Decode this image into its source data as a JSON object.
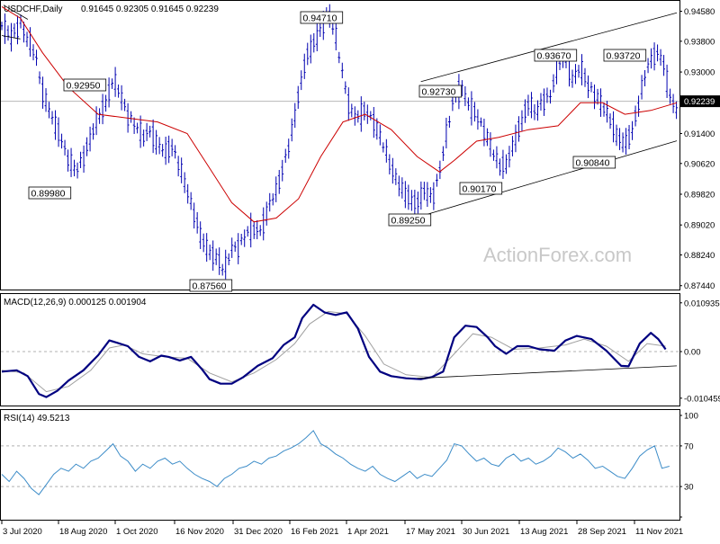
{
  "header": {
    "symbol": "USDCHF,Daily",
    "ohlc": "0.91645 0.92305 0.91645 0.92239"
  },
  "watermark": "ActionForex.com",
  "colors": {
    "price": "#0000b0",
    "ma": "#cc0000",
    "macd": "#000080",
    "signal": "#a0a0a0",
    "rsi": "#3c8cc8",
    "trendline": "#000000",
    "grid_dash": "#b0b0b0"
  },
  "chart_data": [
    {
      "type": "bar",
      "panel": "price",
      "title": "USDCHF,Daily",
      "y_axis_ticks": [
        "0.94580",
        "0.93800",
        "0.93000",
        "0.92239",
        "0.91400",
        "0.90620",
        "0.89820",
        "0.89020",
        "0.88240",
        "0.87440"
      ],
      "y_tick_values": [
        0.9458,
        0.938,
        0.93,
        0.92239,
        0.914,
        0.9062,
        0.8982,
        0.8902,
        0.8824,
        0.8744
      ],
      "ylim": [
        0.8734,
        0.9485
      ],
      "current_price_label": "0.92239",
      "x_tick_labels": [
        "3 Jul 2020",
        "18 Aug 2020",
        "1 Oct 2020",
        "16 Nov 2020",
        "31 Dec 2020",
        "16 Feb 2021",
        "1 Apr 2021",
        "17 May 2021",
        "30 Jun 2021",
        "13 Aug 2021",
        "28 Sep 2021",
        "11 Nov 2021"
      ],
      "price_path": [
        [
          0,
          0.942
        ],
        [
          5,
          0.939
        ],
        [
          10,
          0.943
        ],
        [
          14,
          0.938
        ],
        [
          18,
          0.935
        ],
        [
          22,
          0.925
        ],
        [
          27,
          0.918
        ],
        [
          32,
          0.913
        ],
        [
          36,
          0.907
        ],
        [
          40,
          0.904
        ],
        [
          44,
          0.908
        ],
        [
          48,
          0.913
        ],
        [
          52,
          0.918
        ],
        [
          56,
          0.922
        ],
        [
          60,
          0.928
        ],
        [
          64,
          0.924
        ],
        [
          68,
          0.919
        ],
        [
          72,
          0.916
        ],
        [
          76,
          0.913
        ],
        [
          80,
          0.915
        ],
        [
          84,
          0.911
        ],
        [
          88,
          0.909
        ],
        [
          92,
          0.911
        ],
        [
          96,
          0.905
        ],
        [
          100,
          0.899
        ],
        [
          104,
          0.893
        ],
        [
          108,
          0.886
        ],
        [
          112,
          0.883
        ],
        [
          116,
          0.882
        ],
        [
          120,
          0.878
        ],
        [
          124,
          0.884
        ],
        [
          128,
          0.885
        ],
        [
          132,
          0.888
        ],
        [
          136,
          0.889
        ],
        [
          140,
          0.889
        ],
        [
          144,
          0.895
        ],
        [
          148,
          0.899
        ],
        [
          152,
          0.906
        ],
        [
          156,
          0.913
        ],
        [
          160,
          0.924
        ],
        [
          164,
          0.934
        ],
        [
          168,
          0.937
        ],
        [
          172,
          0.941
        ],
        [
          176,
          0.946
        ],
        [
          180,
          0.939
        ],
        [
          184,
          0.929
        ],
        [
          188,
          0.92
        ],
        [
          192,
          0.918
        ],
        [
          196,
          0.92
        ],
        [
          200,
          0.918
        ],
        [
          204,
          0.913
        ],
        [
          208,
          0.908
        ],
        [
          212,
          0.903
        ],
        [
          216,
          0.899
        ],
        [
          220,
          0.897
        ],
        [
          224,
          0.896
        ],
        [
          228,
          0.899
        ],
        [
          232,
          0.897
        ],
        [
          236,
          0.904
        ],
        [
          240,
          0.914
        ],
        [
          244,
          0.924
        ],
        [
          248,
          0.926
        ],
        [
          252,
          0.921
        ],
        [
          256,
          0.919
        ],
        [
          260,
          0.915
        ],
        [
          264,
          0.91
        ],
        [
          268,
          0.906
        ],
        [
          272,
          0.906
        ],
        [
          276,
          0.911
        ],
        [
          280,
          0.917
        ],
        [
          284,
          0.922
        ],
        [
          288,
          0.919
        ],
        [
          292,
          0.923
        ],
        [
          296,
          0.924
        ],
        [
          300,
          0.932
        ],
        [
          304,
          0.934
        ],
        [
          308,
          0.928
        ],
        [
          312,
          0.931
        ],
        [
          316,
          0.927
        ],
        [
          320,
          0.924
        ],
        [
          324,
          0.921
        ],
        [
          328,
          0.918
        ],
        [
          332,
          0.913
        ],
        [
          336,
          0.911
        ],
        [
          340,
          0.915
        ],
        [
          344,
          0.923
        ],
        [
          348,
          0.931
        ],
        [
          352,
          0.935
        ],
        [
          356,
          0.934
        ],
        [
          360,
          0.924
        ],
        [
          364,
          0.92
        ]
      ],
      "ma_path": [
        [
          0,
          0.947
        ],
        [
          10,
          0.944
        ],
        [
          22,
          0.935
        ],
        [
          36,
          0.926
        ],
        [
          52,
          0.919
        ],
        [
          68,
          0.918
        ],
        [
          84,
          0.917
        ],
        [
          100,
          0.914
        ],
        [
          112,
          0.905
        ],
        [
          124,
          0.896
        ],
        [
          136,
          0.891
        ],
        [
          148,
          0.892
        ],
        [
          160,
          0.897
        ],
        [
          172,
          0.908
        ],
        [
          184,
          0.917
        ],
        [
          196,
          0.919
        ],
        [
          210,
          0.915
        ],
        [
          224,
          0.908
        ],
        [
          236,
          0.904
        ],
        [
          244,
          0.907
        ],
        [
          256,
          0.912
        ],
        [
          268,
          0.913
        ],
        [
          284,
          0.915
        ],
        [
          300,
          0.916
        ],
        [
          312,
          0.922
        ],
        [
          324,
          0.922
        ],
        [
          336,
          0.919
        ],
        [
          350,
          0.92
        ],
        [
          364,
          0.922
        ]
      ],
      "callouts": [
        {
          "label": "0.94710",
          "value": 0.9471
        },
        {
          "label": "0.92950",
          "value": 0.9295
        },
        {
          "label": "0.89980",
          "value": 0.8998
        },
        {
          "label": "0.87560",
          "value": 0.8756
        },
        {
          "label": "0.92730",
          "value": 0.9273
        },
        {
          "label": "0.89250",
          "value": 0.8925
        },
        {
          "label": "0.90170",
          "value": 0.9017
        },
        {
          "label": "0.93670",
          "value": 0.9367
        },
        {
          "label": "0.93720",
          "value": 0.9372
        },
        {
          "label": "0.90840",
          "value": 0.9084
        }
      ],
      "channel_upper": [
        [
          226,
          0.9275
        ],
        [
          364,
          0.9454
        ]
      ],
      "channel_lower": [
        [
          226,
          0.8925
        ],
        [
          364,
          0.9121
        ]
      ]
    },
    {
      "type": "line",
      "panel": "macd",
      "title": "MACD(12,26,9) 0.000125 0.001904",
      "y_axis_ticks": [
        "0.010935",
        "0.00",
        "-0.010459"
      ],
      "y_tick_values": [
        0.010935,
        0.0,
        -0.010459
      ],
      "ylim": [
        -0.0115,
        0.0117
      ],
      "macd_path": [
        [
          0,
          -0.0045
        ],
        [
          8,
          -0.0042
        ],
        [
          14,
          -0.0055
        ],
        [
          20,
          -0.0095
        ],
        [
          24,
          -0.0102
        ],
        [
          30,
          -0.0088
        ],
        [
          36,
          -0.0065
        ],
        [
          44,
          -0.0042
        ],
        [
          52,
          -0.0008
        ],
        [
          58,
          0.0025
        ],
        [
          62,
          0.002
        ],
        [
          68,
          0.0012
        ],
        [
          74,
          -0.0012
        ],
        [
          80,
          -0.0022
        ],
        [
          86,
          -0.0009
        ],
        [
          90,
          -0.0012
        ],
        [
          96,
          -0.002
        ],
        [
          102,
          -0.0012
        ],
        [
          108,
          -0.004
        ],
        [
          112,
          -0.0062
        ],
        [
          118,
          -0.0072
        ],
        [
          124,
          -0.0072
        ],
        [
          130,
          -0.0058
        ],
        [
          138,
          -0.0032
        ],
        [
          146,
          -0.0015
        ],
        [
          152,
          0.0015
        ],
        [
          158,
          0.0032
        ],
        [
          162,
          0.0075
        ],
        [
          168,
          0.0105
        ],
        [
          174,
          0.0088
        ],
        [
          180,
          0.0082
        ],
        [
          186,
          0.0088
        ],
        [
          192,
          0.0052
        ],
        [
          198,
          -0.0012
        ],
        [
          204,
          -0.0045
        ],
        [
          210,
          -0.0055
        ],
        [
          218,
          -0.006
        ],
        [
          226,
          -0.0062
        ],
        [
          232,
          -0.0057
        ],
        [
          238,
          -0.0045
        ],
        [
          244,
          0.0032
        ],
        [
          250,
          0.0058
        ],
        [
          256,
          0.0055
        ],
        [
          262,
          0.0032
        ],
        [
          266,
          0.0012
        ],
        [
          272,
          -0.0005
        ],
        [
          278,
          0.0012
        ],
        [
          284,
          0.0012
        ],
        [
          290,
          0.0005
        ],
        [
          298,
          0.0002
        ],
        [
          304,
          0.0025
        ],
        [
          310,
          0.0035
        ],
        [
          318,
          0.0028
        ],
        [
          326,
          0.0002
        ],
        [
          334,
          -0.0032
        ],
        [
          338,
          -0.0033
        ],
        [
          344,
          0.0018
        ],
        [
          350,
          0.0042
        ],
        [
          354,
          0.0028
        ],
        [
          358,
          0.0005
        ]
      ],
      "signal_path": [
        [
          0,
          -0.0042
        ],
        [
          12,
          -0.0048
        ],
        [
          24,
          -0.009
        ],
        [
          36,
          -0.0078
        ],
        [
          48,
          -0.0042
        ],
        [
          58,
          0.0008
        ],
        [
          66,
          0.0015
        ],
        [
          76,
          -0.0005
        ],
        [
          88,
          -0.0012
        ],
        [
          100,
          -0.0015
        ],
        [
          112,
          -0.0048
        ],
        [
          124,
          -0.0068
        ],
        [
          136,
          -0.0048
        ],
        [
          148,
          -0.0018
        ],
        [
          158,
          0.0018
        ],
        [
          166,
          0.0062
        ],
        [
          176,
          0.009
        ],
        [
          186,
          0.0085
        ],
        [
          196,
          0.0035
        ],
        [
          206,
          -0.0028
        ],
        [
          218,
          -0.0052
        ],
        [
          232,
          -0.0058
        ],
        [
          244,
          -0.0005
        ],
        [
          254,
          0.004
        ],
        [
          264,
          0.0032
        ],
        [
          276,
          0.0005
        ],
        [
          290,
          0.0008
        ],
        [
          304,
          0.0015
        ],
        [
          314,
          0.0028
        ],
        [
          326,
          0.0012
        ],
        [
          338,
          -0.0022
        ],
        [
          348,
          0.0018
        ],
        [
          358,
          0.0012
        ]
      ],
      "trendline": [
        [
          224,
          -0.006
        ],
        [
          364,
          -0.0032
        ]
      ]
    },
    {
      "type": "line",
      "panel": "rsi",
      "title": "RSI(14) 49.5213",
      "y_axis_ticks": [
        "100",
        "70",
        "30",
        "0"
      ],
      "y_tick_values": [
        100,
        70,
        30,
        0
      ],
      "ylim": [
        0,
        100
      ],
      "levels": [
        70,
        30
      ],
      "rsi_path": [
        [
          0,
          42
        ],
        [
          4,
          35
        ],
        [
          8,
          45
        ],
        [
          12,
          38
        ],
        [
          16,
          28
        ],
        [
          20,
          22
        ],
        [
          24,
          32
        ],
        [
          28,
          42
        ],
        [
          32,
          48
        ],
        [
          36,
          45
        ],
        [
          40,
          52
        ],
        [
          44,
          48
        ],
        [
          48,
          55
        ],
        [
          52,
          58
        ],
        [
          56,
          65
        ],
        [
          60,
          72
        ],
        [
          64,
          60
        ],
        [
          68,
          55
        ],
        [
          72,
          45
        ],
        [
          76,
          52
        ],
        [
          80,
          48
        ],
        [
          84,
          55
        ],
        [
          88,
          58
        ],
        [
          92,
          52
        ],
        [
          96,
          55
        ],
        [
          100,
          48
        ],
        [
          104,
          42
        ],
        [
          108,
          38
        ],
        [
          112,
          35
        ],
        [
          116,
          30
        ],
        [
          120,
          38
        ],
        [
          124,
          42
        ],
        [
          128,
          48
        ],
        [
          132,
          50
        ],
        [
          136,
          55
        ],
        [
          140,
          52
        ],
        [
          144,
          58
        ],
        [
          148,
          60
        ],
        [
          152,
          65
        ],
        [
          156,
          68
        ],
        [
          160,
          72
        ],
        [
          164,
          78
        ],
        [
          168,
          85
        ],
        [
          172,
          72
        ],
        [
          176,
          68
        ],
        [
          180,
          62
        ],
        [
          184,
          58
        ],
        [
          188,
          52
        ],
        [
          192,
          48
        ],
        [
          196,
          45
        ],
        [
          200,
          50
        ],
        [
          204,
          42
        ],
        [
          208,
          38
        ],
        [
          212,
          35
        ],
        [
          216,
          40
        ],
        [
          220,
          45
        ],
        [
          224,
          38
        ],
        [
          228,
          42
        ],
        [
          232,
          40
        ],
        [
          236,
          48
        ],
        [
          240,
          56
        ],
        [
          244,
          72
        ],
        [
          248,
          70
        ],
        [
          252,
          62
        ],
        [
          256,
          55
        ],
        [
          260,
          58
        ],
        [
          264,
          52
        ],
        [
          268,
          50
        ],
        [
          272,
          58
        ],
        [
          276,
          62
        ],
        [
          280,
          55
        ],
        [
          284,
          58
        ],
        [
          288,
          52
        ],
        [
          292,
          55
        ],
        [
          296,
          60
        ],
        [
          300,
          68
        ],
        [
          304,
          64
        ],
        [
          308,
          58
        ],
        [
          312,
          62
        ],
        [
          316,
          56
        ],
        [
          320,
          48
        ],
        [
          324,
          50
        ],
        [
          328,
          45
        ],
        [
          332,
          40
        ],
        [
          336,
          38
        ],
        [
          340,
          48
        ],
        [
          344,
          60
        ],
        [
          348,
          66
        ],
        [
          352,
          70
        ],
        [
          356,
          48
        ],
        [
          360,
          50
        ]
      ]
    }
  ]
}
